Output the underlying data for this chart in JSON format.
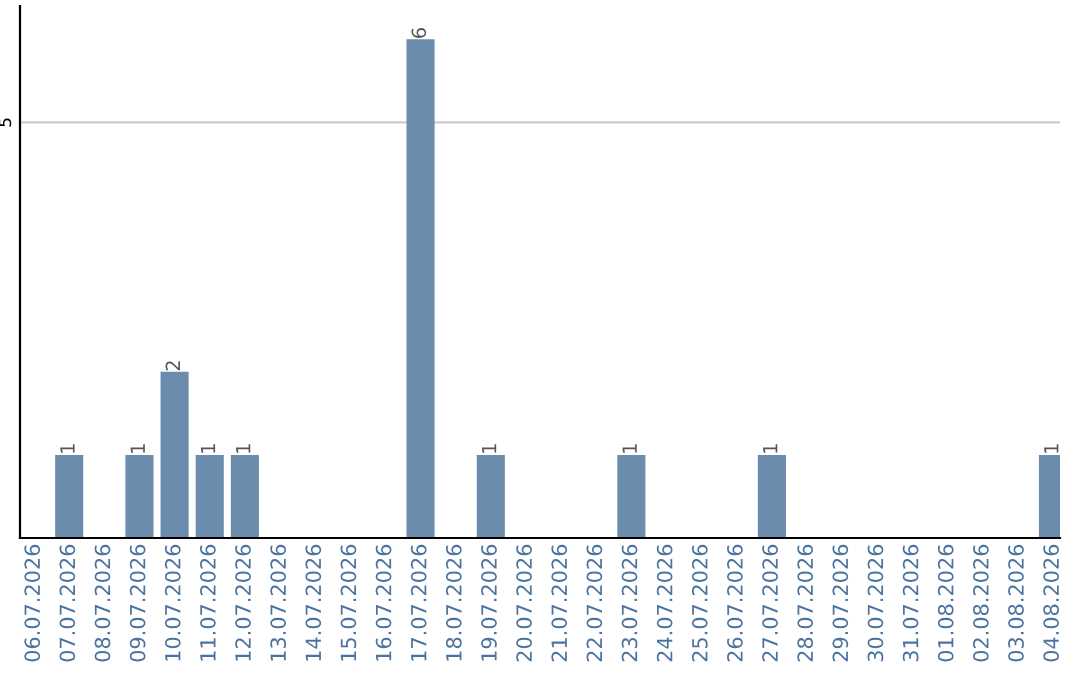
{
  "chart_data": {
    "type": "bar",
    "categories": [
      "06.07.2026",
      "07.07.2026",
      "08.07.2026",
      "09.07.2026",
      "10.07.2026",
      "11.07.2026",
      "12.07.2026",
      "13.07.2026",
      "14.07.2026",
      "15.07.2026",
      "16.07.2026",
      "17.07.2026",
      "18.07.2026",
      "19.07.2026",
      "20.07.2026",
      "21.07.2026",
      "22.07.2026",
      "23.07.2026",
      "24.07.2026",
      "25.07.2026",
      "26.07.2026",
      "27.07.2026",
      "28.07.2026",
      "29.07.2026",
      "30.07.2026",
      "31.07.2026",
      "01.08.2026",
      "02.08.2026",
      "03.08.2026",
      "04.08.2026"
    ],
    "values": [
      0,
      1,
      0,
      1,
      2,
      1,
      1,
      0,
      0,
      0,
      0,
      6,
      0,
      1,
      0,
      0,
      0,
      1,
      0,
      0,
      0,
      1,
      0,
      0,
      0,
      0,
      0,
      0,
      0,
      1
    ],
    "value_labels": [
      null,
      "1",
      null,
      "1",
      "2",
      "1",
      "1",
      null,
      null,
      null,
      null,
      "6",
      null,
      "1",
      null,
      null,
      null,
      "1",
      null,
      null,
      null,
      "1",
      null,
      null,
      null,
      null,
      null,
      null,
      null,
      "1"
    ],
    "color": "#6b8cad",
    "ylim": [
      0,
      6.4
    ],
    "yticks": [
      5
    ],
    "grid": "y"
  }
}
